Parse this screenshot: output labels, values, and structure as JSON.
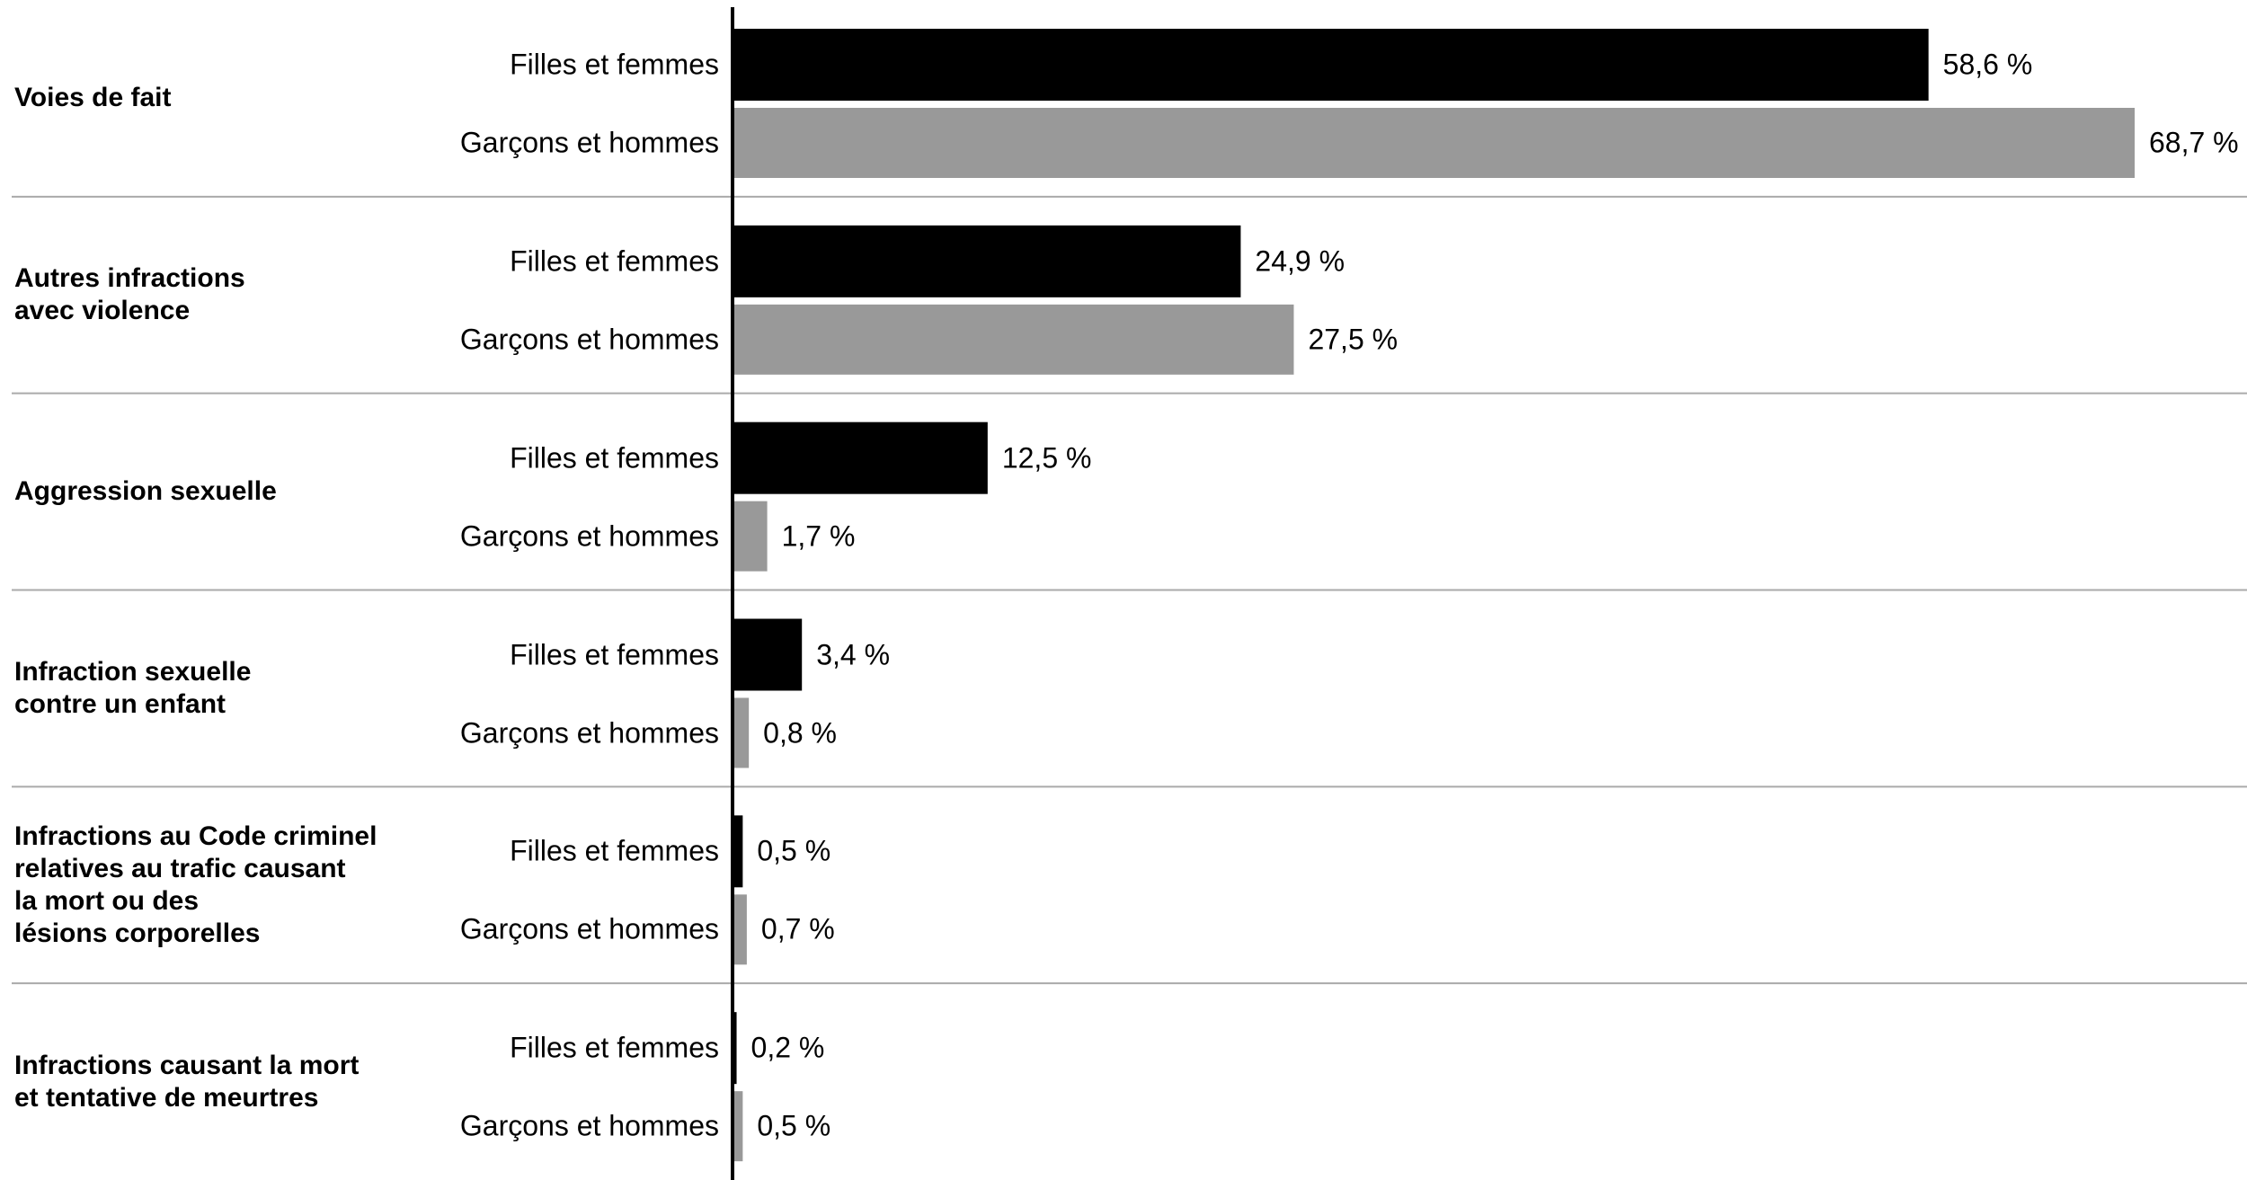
{
  "chart_data": {
    "type": "bar",
    "orientation": "horizontal",
    "categories": [
      "Voies de fait",
      "Autres infractions\navec violence",
      "Aggression sexuelle",
      "Infraction sexuelle\ncontre un enfant",
      "Infractions au Code criminel\nrelatives au trafic causant\nla mort ou des\nlésions corporelles",
      "Infractions causant la mort\net tentative de meurtres"
    ],
    "series": [
      {
        "name": "Filles et femmes",
        "color": "#000000",
        "values": [
          58.6,
          24.9,
          12.5,
          3.4,
          0.5,
          0.2
        ],
        "value_labels": [
          "58,6 %",
          "24,9 %",
          "12,5 %",
          "3,4 %",
          "0,5 %",
          "0,2 %"
        ]
      },
      {
        "name": "Garçons et hommes",
        "color": "#999999",
        "values": [
          68.7,
          27.5,
          1.7,
          0.8,
          0.7,
          0.5
        ],
        "value_labels": [
          "68,7 %",
          "27,5 %",
          "1,7 %",
          "0,8 %",
          "0,7 %",
          "0,5 %"
        ]
      }
    ]
  }
}
